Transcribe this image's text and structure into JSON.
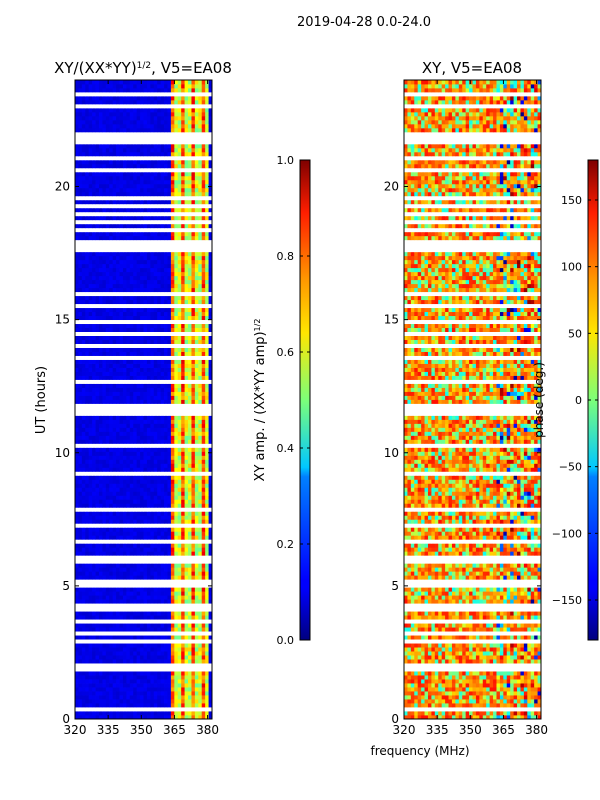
{
  "suptitle": "2019-04-28 0.0-24.0",
  "chart_data": [
    {
      "type": "heatmap",
      "title_prefix": "XY/(XX*YY)",
      "title_exponent": "1/2",
      "title_suffix": ", V5=EA08",
      "xlabel": "",
      "ylabel": "UT (hours)",
      "xlim": [
        320,
        382
      ],
      "ylim": [
        0,
        24
      ],
      "xticks": [
        320,
        335,
        350,
        365,
        380
      ],
      "yticks": [
        0,
        5,
        10,
        15,
        20
      ],
      "colormap": "jet",
      "colorbar": {
        "label_prefix": "XY amp. / (XX*YY amp)",
        "label_exponent": "1/2",
        "vmin": 0.0,
        "vmax": 1.0,
        "ticks": [
          0.0,
          0.2,
          0.4,
          0.6,
          0.8,
          1.0
        ],
        "tick_labels": [
          "0.0",
          "0.2",
          "0.4",
          "0.6",
          "0.8",
          "1.0"
        ]
      },
      "data_description_values": {
        "background_value": 0.1,
        "active_band_freq_range": [
          363,
          380
        ],
        "active_band_value_range": [
          0.4,
          0.9
        ]
      }
    },
    {
      "type": "heatmap",
      "title": "XY, V5=EA08",
      "xlabel": "frequency (MHz)",
      "ylabel": "",
      "xlim": [
        320,
        382
      ],
      "ylim": [
        0,
        24
      ],
      "xticks": [
        320,
        335,
        350,
        365,
        380
      ],
      "yticks": [
        0,
        5,
        10,
        15,
        20
      ],
      "colormap": "jet",
      "colorbar": {
        "label": "phase (deg.)",
        "vmin": -180,
        "vmax": 180,
        "ticks": [
          -150,
          -100,
          -50,
          0,
          50,
          100,
          150
        ],
        "tick_labels": [
          "−150",
          "−100",
          "−50",
          "0",
          "50",
          "100",
          "150"
        ]
      },
      "data_description_values": {
        "dominant_phase_range": [
          60,
          130
        ],
        "secondary_phase_range": [
          -40,
          30
        ]
      }
    }
  ],
  "flagged_gaps_ut": [
    0.35,
    0.75,
    1.85,
    2.05,
    2.95,
    3.2,
    3.45,
    3.7,
    4.1,
    4.25,
    5.05,
    5.15,
    5.9,
    6.1,
    6.7,
    7.3,
    7.9,
    8.4,
    9.2,
    9.6,
    10.3,
    11.45,
    11.6,
    11.75,
    12.3,
    12.7,
    13.2,
    13.6,
    14.0,
    14.5,
    14.9,
    15.5,
    16.0,
    16.5,
    17.1,
    17.6,
    17.75,
    17.9,
    18.4,
    18.7,
    19.0,
    19.3,
    19.6,
    20.1,
    20.6,
    21.1,
    21.7,
    21.85,
    22.0,
    22.5,
    23.0,
    23.5
  ]
}
